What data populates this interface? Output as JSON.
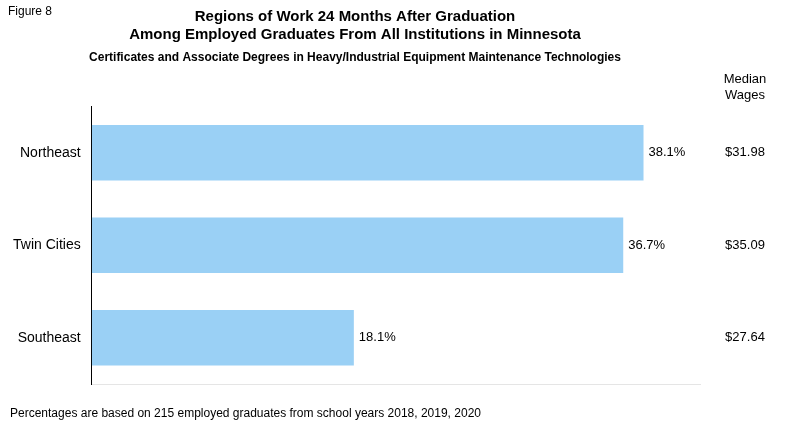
{
  "chart_data": {
    "type": "bar",
    "orientation": "horizontal",
    "figure_label": "Figure 8",
    "title": [
      "Regions of Work 24 Months After Graduation",
      "Among Employed Graduates From All Institutions in Minnesota"
    ],
    "subtitle": "Certificates and Associate Degrees in Heavy/Industrial Equipment Maintenance Technologies",
    "categories": [
      "Northeast",
      "Twin Cities",
      "Southeast"
    ],
    "values": [
      38.1,
      36.7,
      18.1
    ],
    "value_labels": [
      "38.1%",
      "36.7%",
      "18.1%"
    ],
    "data_labels": true,
    "median_wages": {
      "label": "Median\nWages",
      "labels": [
        "$31.98",
        "$35.09",
        "$27.64"
      ]
    },
    "xlim": [
      0,
      42
    ],
    "grid": false,
    "tick_labels": "y",
    "footnote": "Percentages are based on 215 employed graduates from school years 2018, 2019, 2020"
  }
}
